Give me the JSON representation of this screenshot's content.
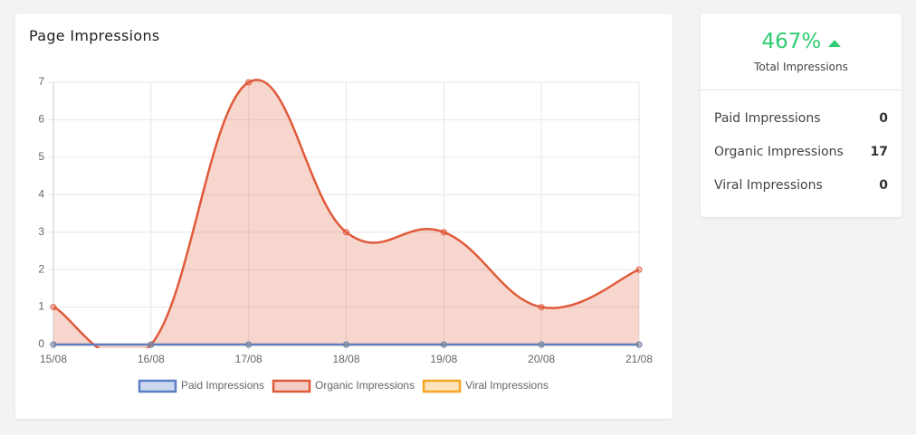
{
  "chart_data": {
    "type": "line",
    "title": "Page Impressions",
    "categories": [
      "15/08",
      "16/08",
      "17/08",
      "18/08",
      "19/08",
      "20/08",
      "21/08"
    ],
    "series": [
      {
        "name": "Paid Impressions",
        "color": "#5b7fc7",
        "values": [
          0,
          0,
          0,
          0,
          0,
          0,
          0
        ]
      },
      {
        "name": "Organic Impressions",
        "color": "#e05a3a",
        "values": [
          1,
          0,
          7,
          3,
          3,
          1,
          2
        ]
      },
      {
        "name": "Viral Impressions",
        "color": "#f5a623",
        "values": [
          0,
          0,
          0,
          0,
          0,
          0,
          0
        ]
      }
    ],
    "ylim": [
      0,
      7
    ],
    "yticks": [
      0,
      1,
      2,
      3,
      4,
      5,
      6,
      7
    ],
    "grid": true,
    "fill": true,
    "smooth": true,
    "legend": "bottom"
  },
  "summary": {
    "change": "467%",
    "caption": "Total Impressions",
    "rows": [
      [
        "Paid Impressions",
        "0"
      ],
      [
        "Organic Impressions",
        "17"
      ],
      [
        "Viral Impressions",
        "0"
      ]
    ]
  }
}
